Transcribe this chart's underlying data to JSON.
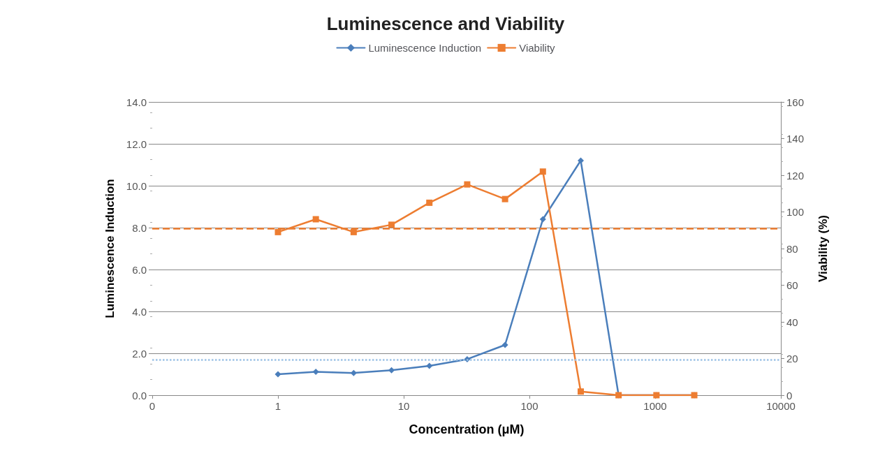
{
  "chart_data": {
    "type": "line",
    "title": "Luminescence and Viability",
    "xlabel": "Concentration (μM)",
    "ylabel": "Luminescence Induction",
    "y2label": "Viability (%)",
    "x": [
      1,
      2,
      4,
      8,
      16,
      32,
      64,
      128,
      256,
      512,
      1024,
      2048
    ],
    "log": "x",
    "xlim": [
      0.1,
      10000
    ],
    "xticks": [
      {
        "value": 0.1,
        "label": "0"
      },
      1,
      10,
      100,
      1000,
      10000
    ],
    "ylim": [
      0,
      14
    ],
    "yticks": [
      {
        "value": 0,
        "label": "0.0"
      },
      {
        "value": 2,
        "label": "2.0"
      },
      {
        "value": 4,
        "label": "4.0"
      },
      {
        "value": 6,
        "label": "6.0"
      },
      {
        "value": 8,
        "label": "8.0"
      },
      {
        "value": 10,
        "label": "10.0"
      },
      {
        "value": 12,
        "label": "12.0"
      },
      {
        "value": 14,
        "label": "14.0"
      }
    ],
    "y2lim": [
      0,
      160
    ],
    "y2ticks": [
      0,
      20,
      40,
      60,
      80,
      100,
      120,
      140,
      160
    ],
    "grid": "y",
    "legend": "top",
    "series": [
      {
        "name": "Luminescence Induction",
        "color": "#4a7ebb",
        "marker": "diamond",
        "values": [
          1.0,
          1.12,
          1.06,
          1.19,
          1.4,
          1.72,
          2.4,
          8.4,
          11.2,
          0,
          0,
          0
        ]
      },
      {
        "name": "Viability",
        "color": "#ed7d31",
        "marker": "square",
        "axis": "y2",
        "values": [
          89,
          96,
          89,
          93,
          105,
          115,
          107,
          122,
          2,
          0,
          0,
          0
        ]
      }
    ],
    "ref_lines": [
      {
        "axis": "y2",
        "value": 91,
        "color": "#ed7d31",
        "line_style": "dashed"
      },
      {
        "axis": "y",
        "value": 1.7,
        "color": "#9dc3e6",
        "line_style": "dotted"
      }
    ]
  }
}
